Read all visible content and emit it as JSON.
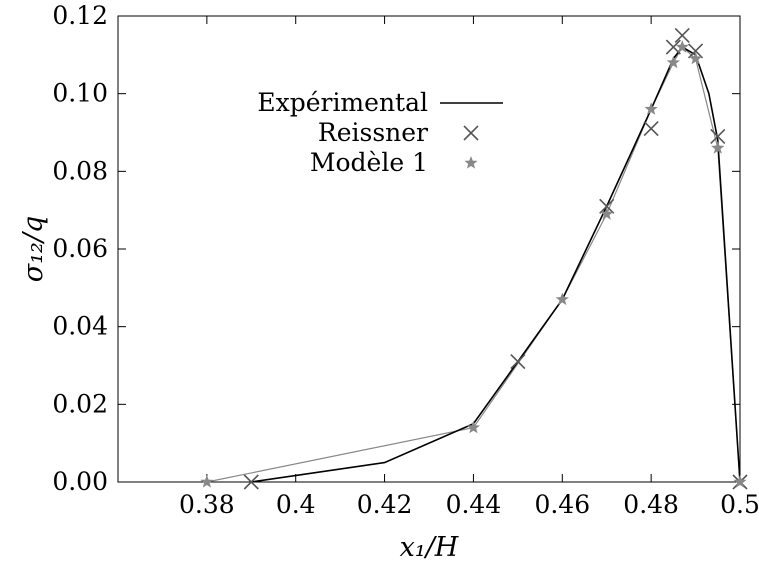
{
  "chart_data": {
    "type": "line",
    "xlabel": "x₁/H",
    "ylabel": "σ₁₂/q",
    "xlim": [
      0.36,
      0.5
    ],
    "ylim": [
      0.0,
      0.12
    ],
    "x_ticks": [
      "0.38",
      "0.4",
      "0.42",
      "0.44",
      "0.46",
      "0.48",
      "0.5"
    ],
    "y_ticks": [
      "0.00",
      "0.02",
      "0.04",
      "0.06",
      "0.08",
      "0.10",
      "0.12"
    ],
    "grid": false,
    "legend_position": "upper-left-center",
    "series": [
      {
        "name": "Expérimental",
        "style": "line",
        "color": "#000000",
        "x": [
          0.39,
          0.42,
          0.44,
          0.45,
          0.46,
          0.47,
          0.48,
          0.485,
          0.487,
          0.49,
          0.493,
          0.495,
          0.5
        ],
        "y": [
          0.0,
          0.005,
          0.015,
          0.031,
          0.047,
          0.071,
          0.096,
          0.109,
          0.112,
          0.11,
          0.1,
          0.088,
          0.0
        ]
      },
      {
        "name": "Reissner",
        "style": "marker-x",
        "color": "#555555",
        "x": [
          0.39,
          0.45,
          0.47,
          0.48,
          0.485,
          0.487,
          0.49,
          0.495,
          0.5
        ],
        "y": [
          0.0,
          0.031,
          0.071,
          0.091,
          0.112,
          0.115,
          0.111,
          0.089,
          0.0
        ]
      },
      {
        "name": "Modèle 1",
        "style": "marker-star",
        "color": "#888888",
        "x": [
          0.38,
          0.44,
          0.46,
          0.47,
          0.48,
          0.485,
          0.487,
          0.49,
          0.495,
          0.5
        ],
        "y": [
          0.0,
          0.014,
          0.047,
          0.069,
          0.096,
          0.108,
          0.112,
          0.109,
          0.086,
          0.0
        ]
      }
    ]
  }
}
